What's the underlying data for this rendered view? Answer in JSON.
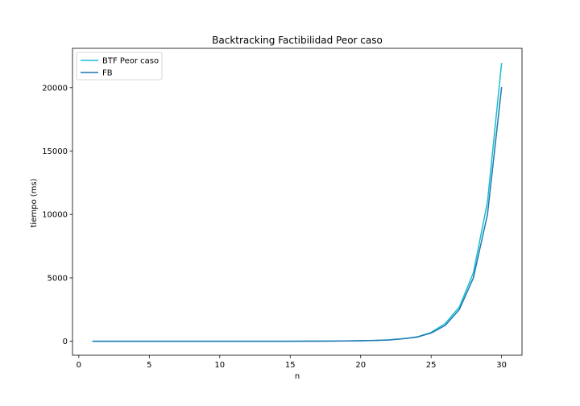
{
  "chart_data": {
    "type": "line",
    "title": "Backtracking Factibilidad Peor caso",
    "xlabel": "n",
    "ylabel": "tiempo (ms)",
    "xlim": [
      -0.45,
      31.45
    ],
    "ylim": [
      -1100,
      23100
    ],
    "xticks": [
      0,
      5,
      10,
      15,
      20,
      25,
      30
    ],
    "yticks": [
      0,
      5000,
      10000,
      15000,
      20000
    ],
    "xtick_labels": [
      "0",
      "5",
      "10",
      "15",
      "20",
      "25",
      "30"
    ],
    "ytick_labels": [
      "0",
      "5000",
      "10000",
      "15000",
      "20000"
    ],
    "legend_position": "top-left",
    "grid": false,
    "x": [
      1,
      2,
      3,
      4,
      5,
      6,
      7,
      8,
      9,
      10,
      11,
      12,
      13,
      14,
      15,
      16,
      17,
      18,
      19,
      20,
      21,
      22,
      23,
      24,
      25,
      26,
      27,
      28,
      29,
      30
    ],
    "series": [
      {
        "name": "BTF Peor caso",
        "color": "#17becf",
        "values": [
          0,
          0,
          0,
          0,
          0,
          0,
          0,
          0,
          1,
          1,
          1,
          2,
          3,
          5,
          7,
          10,
          15,
          20,
          30,
          45,
          70,
          110,
          200,
          350,
          700,
          1400,
          2700,
          5400,
          11000,
          21900
        ]
      },
      {
        "name": "FB",
        "color": "#1f77b4",
        "values": [
          0,
          0,
          0,
          0,
          0,
          0,
          0,
          0,
          1,
          1,
          1,
          2,
          3,
          5,
          7,
          10,
          15,
          20,
          30,
          45,
          70,
          110,
          200,
          330,
          650,
          1250,
          2500,
          5000,
          10000,
          20000
        ]
      }
    ]
  }
}
